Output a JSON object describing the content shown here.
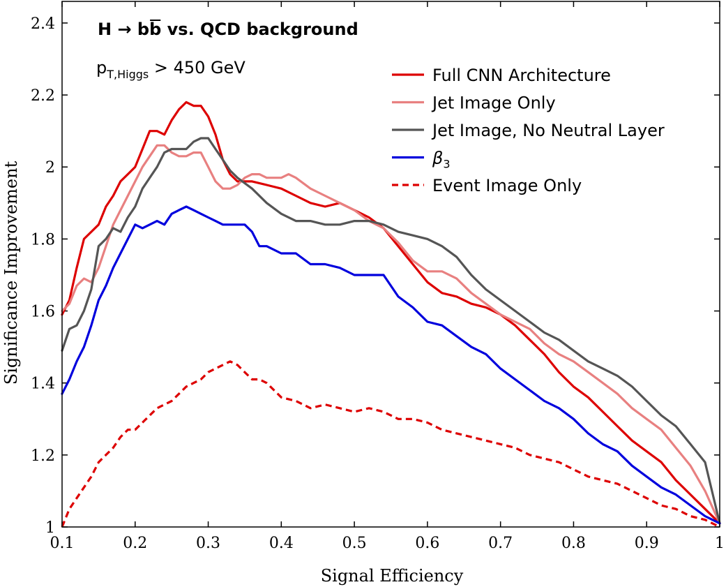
{
  "chart_data": {
    "type": "line",
    "title_parts": {
      "prefix": "H → b",
      "bbar": "b",
      "suffix": " vs. QCD background"
    },
    "annotation": {
      "main": "p",
      "subscript": "T,Higgs",
      "rest": " > 450 GeV"
    },
    "xlabel": "Signal Efficiency",
    "ylabel": "Significance Improvement",
    "xlim": [
      0.1,
      1.0
    ],
    "ylim": [
      1.0,
      2.46
    ],
    "xticks": [
      0.1,
      0.2,
      0.3,
      0.4,
      0.5,
      0.6,
      0.7,
      0.8,
      0.9,
      1.0
    ],
    "xtick_labels": [
      "0.1",
      "0.2",
      "0.3",
      "0.4",
      "0.5",
      "0.6",
      "0.7",
      "0.8",
      "0.9",
      "1"
    ],
    "yticks": [
      1.0,
      1.2,
      1.4,
      1.6,
      1.8,
      2.0,
      2.2,
      2.4
    ],
    "ytick_labels": [
      "1",
      "1.2",
      "1.4",
      "1.6",
      "1.8",
      "2",
      "2.2",
      "2.4"
    ],
    "legend_position": "top-right",
    "series": [
      {
        "name": "Full CNN Architecture",
        "color": "#dd0000",
        "dash": "solid",
        "x": [
          0.1,
          0.11,
          0.12,
          0.13,
          0.14,
          0.15,
          0.16,
          0.17,
          0.18,
          0.19,
          0.2,
          0.21,
          0.22,
          0.23,
          0.24,
          0.25,
          0.26,
          0.27,
          0.28,
          0.29,
          0.3,
          0.31,
          0.32,
          0.33,
          0.34,
          0.35,
          0.36,
          0.38,
          0.4,
          0.42,
          0.44,
          0.46,
          0.48,
          0.5,
          0.52,
          0.54,
          0.56,
          0.58,
          0.6,
          0.62,
          0.64,
          0.66,
          0.68,
          0.7,
          0.72,
          0.74,
          0.76,
          0.78,
          0.8,
          0.82,
          0.84,
          0.86,
          0.88,
          0.9,
          0.92,
          0.94,
          0.96,
          0.98,
          1.0
        ],
        "y": [
          1.59,
          1.63,
          1.72,
          1.8,
          1.82,
          1.84,
          1.89,
          1.92,
          1.96,
          1.98,
          2.0,
          2.05,
          2.1,
          2.1,
          2.09,
          2.13,
          2.16,
          2.18,
          2.17,
          2.17,
          2.14,
          2.09,
          2.02,
          1.98,
          1.96,
          1.96,
          1.96,
          1.95,
          1.94,
          1.92,
          1.9,
          1.89,
          1.9,
          1.88,
          1.86,
          1.83,
          1.78,
          1.73,
          1.68,
          1.65,
          1.64,
          1.62,
          1.61,
          1.59,
          1.56,
          1.52,
          1.48,
          1.43,
          1.39,
          1.36,
          1.32,
          1.28,
          1.24,
          1.21,
          1.18,
          1.13,
          1.09,
          1.05,
          1.01
        ]
      },
      {
        "name": "Jet Image Only",
        "color": "#e88080",
        "dash": "solid",
        "x": [
          0.1,
          0.11,
          0.12,
          0.13,
          0.14,
          0.15,
          0.16,
          0.17,
          0.18,
          0.19,
          0.2,
          0.21,
          0.22,
          0.23,
          0.24,
          0.25,
          0.26,
          0.27,
          0.28,
          0.29,
          0.3,
          0.31,
          0.32,
          0.33,
          0.34,
          0.35,
          0.36,
          0.37,
          0.38,
          0.39,
          0.4,
          0.41,
          0.42,
          0.44,
          0.46,
          0.48,
          0.5,
          0.52,
          0.54,
          0.56,
          0.58,
          0.6,
          0.62,
          0.64,
          0.66,
          0.68,
          0.7,
          0.72,
          0.74,
          0.76,
          0.78,
          0.8,
          0.82,
          0.84,
          0.86,
          0.88,
          0.9,
          0.92,
          0.94,
          0.96,
          0.98,
          1.0
        ],
        "y": [
          1.6,
          1.62,
          1.67,
          1.69,
          1.68,
          1.72,
          1.78,
          1.84,
          1.88,
          1.92,
          1.96,
          2.0,
          2.03,
          2.06,
          2.06,
          2.04,
          2.03,
          2.03,
          2.04,
          2.04,
          2.0,
          1.96,
          1.94,
          1.94,
          1.95,
          1.97,
          1.98,
          1.98,
          1.97,
          1.97,
          1.97,
          1.98,
          1.97,
          1.94,
          1.92,
          1.9,
          1.88,
          1.85,
          1.83,
          1.79,
          1.74,
          1.71,
          1.71,
          1.69,
          1.65,
          1.62,
          1.59,
          1.57,
          1.55,
          1.51,
          1.48,
          1.46,
          1.43,
          1.4,
          1.37,
          1.33,
          1.3,
          1.27,
          1.22,
          1.17,
          1.1,
          1.01
        ]
      },
      {
        "name": "Jet Image, No Neutral Layer",
        "color": "#555555",
        "dash": "solid",
        "x": [
          0.1,
          0.11,
          0.12,
          0.13,
          0.14,
          0.15,
          0.16,
          0.17,
          0.18,
          0.19,
          0.2,
          0.21,
          0.22,
          0.23,
          0.24,
          0.25,
          0.26,
          0.27,
          0.28,
          0.29,
          0.3,
          0.31,
          0.32,
          0.33,
          0.34,
          0.36,
          0.38,
          0.4,
          0.42,
          0.44,
          0.46,
          0.48,
          0.5,
          0.52,
          0.54,
          0.56,
          0.58,
          0.6,
          0.62,
          0.64,
          0.66,
          0.68,
          0.7,
          0.72,
          0.74,
          0.76,
          0.78,
          0.8,
          0.82,
          0.84,
          0.86,
          0.88,
          0.9,
          0.92,
          0.94,
          0.96,
          0.98,
          1.0
        ],
        "y": [
          1.49,
          1.55,
          1.56,
          1.6,
          1.66,
          1.78,
          1.8,
          1.83,
          1.82,
          1.86,
          1.89,
          1.94,
          1.97,
          2.0,
          2.04,
          2.05,
          2.05,
          2.05,
          2.07,
          2.08,
          2.08,
          2.05,
          2.02,
          1.99,
          1.97,
          1.94,
          1.9,
          1.87,
          1.85,
          1.85,
          1.84,
          1.84,
          1.85,
          1.85,
          1.84,
          1.82,
          1.81,
          1.8,
          1.78,
          1.75,
          1.7,
          1.66,
          1.63,
          1.6,
          1.57,
          1.54,
          1.52,
          1.49,
          1.46,
          1.44,
          1.42,
          1.39,
          1.35,
          1.31,
          1.28,
          1.23,
          1.18,
          1.01
        ]
      },
      {
        "name": "β3",
        "color": "#0000dd",
        "dash": "solid",
        "x": [
          0.1,
          0.11,
          0.12,
          0.13,
          0.14,
          0.15,
          0.16,
          0.17,
          0.18,
          0.19,
          0.2,
          0.21,
          0.22,
          0.23,
          0.24,
          0.25,
          0.26,
          0.27,
          0.28,
          0.29,
          0.3,
          0.31,
          0.32,
          0.33,
          0.34,
          0.35,
          0.36,
          0.37,
          0.38,
          0.4,
          0.42,
          0.44,
          0.46,
          0.48,
          0.5,
          0.52,
          0.54,
          0.56,
          0.58,
          0.6,
          0.62,
          0.64,
          0.66,
          0.68,
          0.7,
          0.72,
          0.74,
          0.76,
          0.78,
          0.8,
          0.82,
          0.84,
          0.86,
          0.88,
          0.9,
          0.92,
          0.94,
          0.96,
          0.98,
          1.0
        ],
        "y": [
          1.37,
          1.41,
          1.46,
          1.5,
          1.56,
          1.63,
          1.67,
          1.72,
          1.76,
          1.8,
          1.84,
          1.83,
          1.84,
          1.85,
          1.84,
          1.87,
          1.88,
          1.89,
          1.88,
          1.87,
          1.86,
          1.85,
          1.84,
          1.84,
          1.84,
          1.84,
          1.82,
          1.78,
          1.78,
          1.76,
          1.76,
          1.73,
          1.73,
          1.72,
          1.7,
          1.7,
          1.7,
          1.64,
          1.61,
          1.57,
          1.56,
          1.53,
          1.5,
          1.48,
          1.44,
          1.41,
          1.38,
          1.35,
          1.33,
          1.3,
          1.26,
          1.23,
          1.21,
          1.17,
          1.14,
          1.11,
          1.09,
          1.06,
          1.03,
          1.01
        ]
      },
      {
        "name": "Event Image Only",
        "color": "#dd0000",
        "dash": "dashed",
        "x": [
          0.1,
          0.11,
          0.12,
          0.13,
          0.14,
          0.15,
          0.16,
          0.17,
          0.18,
          0.19,
          0.2,
          0.21,
          0.22,
          0.23,
          0.24,
          0.25,
          0.26,
          0.27,
          0.28,
          0.29,
          0.3,
          0.31,
          0.32,
          0.33,
          0.34,
          0.35,
          0.36,
          0.37,
          0.38,
          0.39,
          0.4,
          0.42,
          0.44,
          0.46,
          0.48,
          0.5,
          0.52,
          0.54,
          0.56,
          0.58,
          0.6,
          0.62,
          0.64,
          0.66,
          0.68,
          0.7,
          0.72,
          0.74,
          0.76,
          0.78,
          0.8,
          0.82,
          0.84,
          0.86,
          0.88,
          0.9,
          0.92,
          0.94,
          0.96,
          0.98,
          1.0
        ],
        "y": [
          1.0,
          1.05,
          1.08,
          1.11,
          1.14,
          1.18,
          1.2,
          1.22,
          1.25,
          1.27,
          1.27,
          1.29,
          1.31,
          1.33,
          1.34,
          1.35,
          1.37,
          1.39,
          1.4,
          1.41,
          1.43,
          1.44,
          1.45,
          1.46,
          1.45,
          1.43,
          1.41,
          1.41,
          1.4,
          1.38,
          1.36,
          1.35,
          1.33,
          1.34,
          1.33,
          1.32,
          1.33,
          1.32,
          1.3,
          1.3,
          1.29,
          1.27,
          1.26,
          1.25,
          1.24,
          1.23,
          1.22,
          1.2,
          1.19,
          1.18,
          1.16,
          1.14,
          1.13,
          1.12,
          1.1,
          1.08,
          1.06,
          1.05,
          1.03,
          1.02,
          1.0
        ]
      }
    ]
  }
}
